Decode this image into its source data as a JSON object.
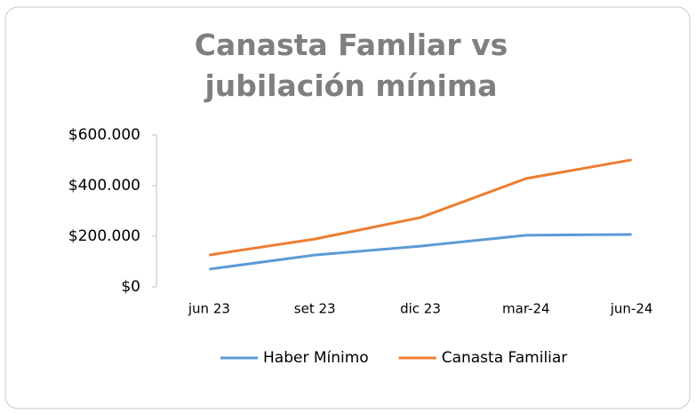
{
  "chart_data": {
    "type": "line",
    "title": "Canasta Famliar vs jubilación mínima",
    "categories": [
      "jun 23",
      "set 23",
      "dic 23",
      "mar-24",
      "jun-24"
    ],
    "series": [
      {
        "name": "Haber Mínimo",
        "color": "#5b9bd5",
        "values": [
          70000,
          126000,
          161000,
          204000,
          207000
        ]
      },
      {
        "name": "Canasta Familiar",
        "color": "#ed7d31",
        "values": [
          126000,
          189000,
          274000,
          428000,
          502000
        ]
      }
    ],
    "ylim": [
      0,
      600000
    ],
    "yticks": [
      {
        "value": 0,
        "label": "$0"
      },
      {
        "value": 200000,
        "label": "$200.000"
      },
      {
        "value": 400000,
        "label": "$400.000"
      },
      {
        "value": 600000,
        "label": "$600.000"
      }
    ],
    "legend": "bottom"
  }
}
